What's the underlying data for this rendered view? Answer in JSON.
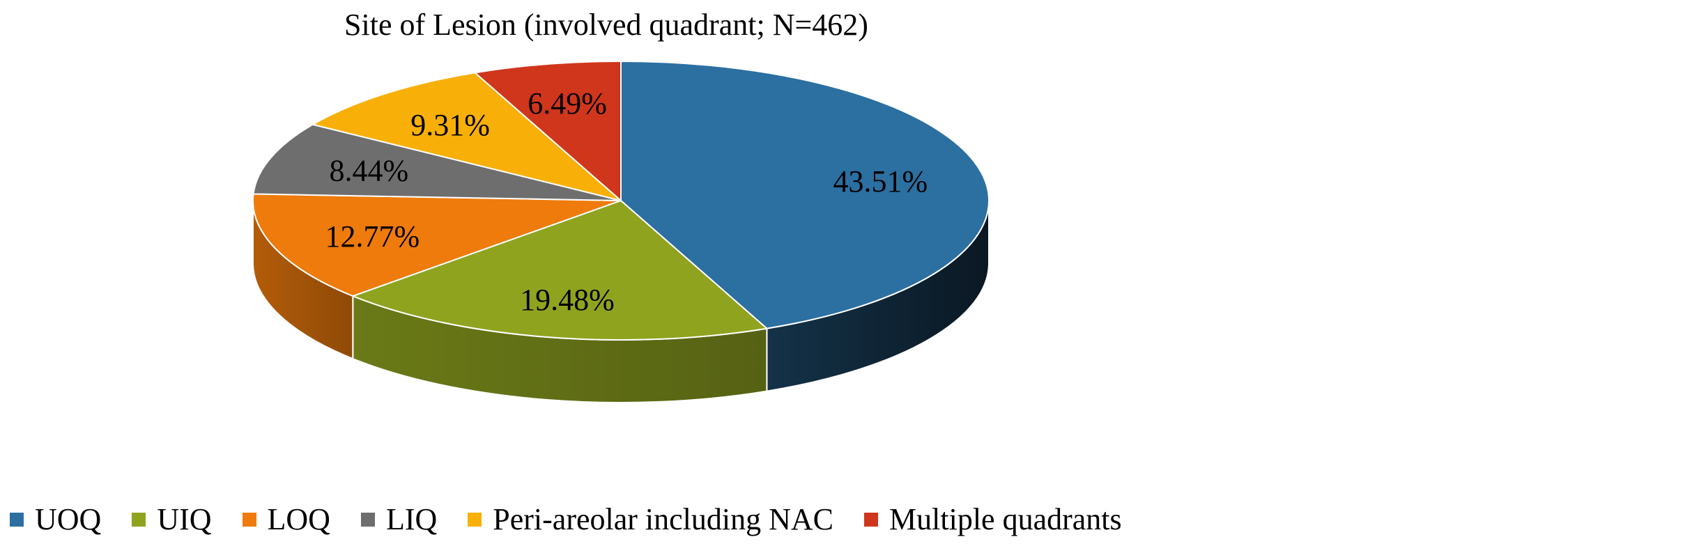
{
  "chart_data": {
    "type": "pie",
    "title": "Site of Lesion (involved quadrant; N=462)",
    "categories": [
      "UOQ",
      "UIQ",
      "LOQ",
      "LIQ",
      "Peri-areolar including NAC",
      "Multiple quadrants"
    ],
    "values": [
      43.51,
      19.48,
      12.77,
      8.44,
      9.31,
      6.49
    ],
    "labels": [
      "43.51%",
      "19.48%",
      "12.77%",
      "8.44%",
      "9.31%",
      "6.49%"
    ],
    "colors": [
      "#2c6fa1",
      "#8fa31f",
      "#ee7b0b",
      "#6e6e6e",
      "#f8b008",
      "#d0361c"
    ],
    "unit": "%",
    "legend_position": "bottom",
    "style": "3d-pie"
  }
}
